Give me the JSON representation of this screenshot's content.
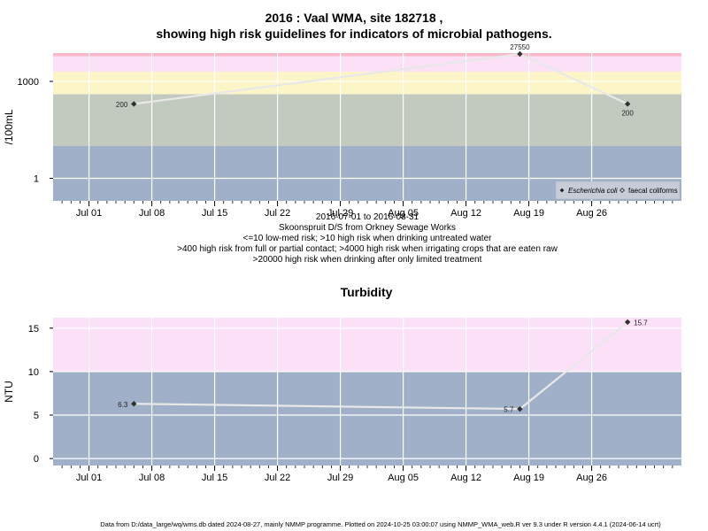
{
  "chart_data": [
    {
      "type": "line",
      "title_line1": "2016 : Vaal WMA, site 182718 ,",
      "title_line2": "showing high risk guidelines for indicators of microbial pathogens.",
      "ylabel": "/100mL",
      "yscale": "log",
      "ylim": [
        0.2,
        7500
      ],
      "yticks": [
        {
          "value": 1,
          "label": "1"
        },
        {
          "value": 1000,
          "label": "1000"
        }
      ],
      "risk_bands": [
        {
          "from": 0.2,
          "to": 10,
          "color": "#a0b0c8"
        },
        {
          "from": 10,
          "to": 400,
          "color": "#c2cac0"
        },
        {
          "from": 400,
          "to": 2000,
          "color": "#fcf5c8"
        },
        {
          "from": 2000,
          "to": 6000,
          "color": "#fce0f8"
        },
        {
          "from": 6000,
          "to": 7500,
          "color": "#f8b8c8"
        }
      ],
      "series": [
        {
          "name": "Escherichia coli",
          "points": [
            {
              "x": "2016-07-06",
              "y": 200,
              "label": "200"
            },
            {
              "x": "2016-08-18",
              "y": 27550,
              "label": "27550"
            },
            {
              "x": "2016-08-30",
              "y": 200,
              "label": "200"
            }
          ]
        }
      ],
      "legend": {
        "position": "bottom-right",
        "entries": [
          "Escherichia coli",
          "faecal coliforms"
        ]
      },
      "xlabel_lines": [
        "2016-07-01 to 2016-08-31",
        "Skoonspruit D/S from Orkney Sewage Works",
        "<=10 low-med risk; >10 high risk when drinking untreated water",
        ">400 high risk from full or partial contact; >4000 high risk when irrigating crops that are eaten raw",
        ">20000 high risk when drinking after only limited treatment"
      ]
    },
    {
      "type": "line",
      "title": "Turbidity",
      "ylabel": "NTU",
      "ylim": [
        -0.8,
        16.2
      ],
      "yticks": [
        {
          "value": 0,
          "label": "0"
        },
        {
          "value": 5,
          "label": "5"
        },
        {
          "value": 10,
          "label": "10"
        },
        {
          "value": 15,
          "label": "15"
        }
      ],
      "risk_bands": [
        {
          "from": -0.8,
          "to": 10,
          "color": "#a0b0c8"
        },
        {
          "from": 10,
          "to": 16.2,
          "color": "#fce0f8"
        }
      ],
      "series": [
        {
          "points": [
            {
              "x": "2016-07-06",
              "y": 6.3,
              "label": "6.3"
            },
            {
              "x": "2016-08-18",
              "y": 5.7,
              "label": "5.7"
            },
            {
              "x": "2016-08-30",
              "y": 15.7,
              "label": "15.7"
            }
          ]
        }
      ]
    }
  ],
  "x_axis": {
    "range": [
      "2016-06-27",
      "2016-09-05"
    ],
    "ticks": [
      {
        "date": "2016-07-01",
        "label": "Jul 01"
      },
      {
        "date": "2016-07-08",
        "label": "Jul 08"
      },
      {
        "date": "2016-07-15",
        "label": "Jul 15"
      },
      {
        "date": "2016-07-22",
        "label": "Jul 22"
      },
      {
        "date": "2016-07-29",
        "label": "Jul 29"
      },
      {
        "date": "2016-08-05",
        "label": "Aug 05"
      },
      {
        "date": "2016-08-12",
        "label": "Aug 12"
      },
      {
        "date": "2016-08-19",
        "label": "Aug 19"
      },
      {
        "date": "2016-08-26",
        "label": "Aug 26"
      }
    ]
  },
  "footer": "Data from D:/data_large/wq/wms.db dated 2024-08-27, mainly NMMP programme. Plotted on 2024-10-25 03:00:07 using NMMP_WMA_web.R ver 9.3 under R version 4.4.1 (2024-06-14 ucrt)"
}
